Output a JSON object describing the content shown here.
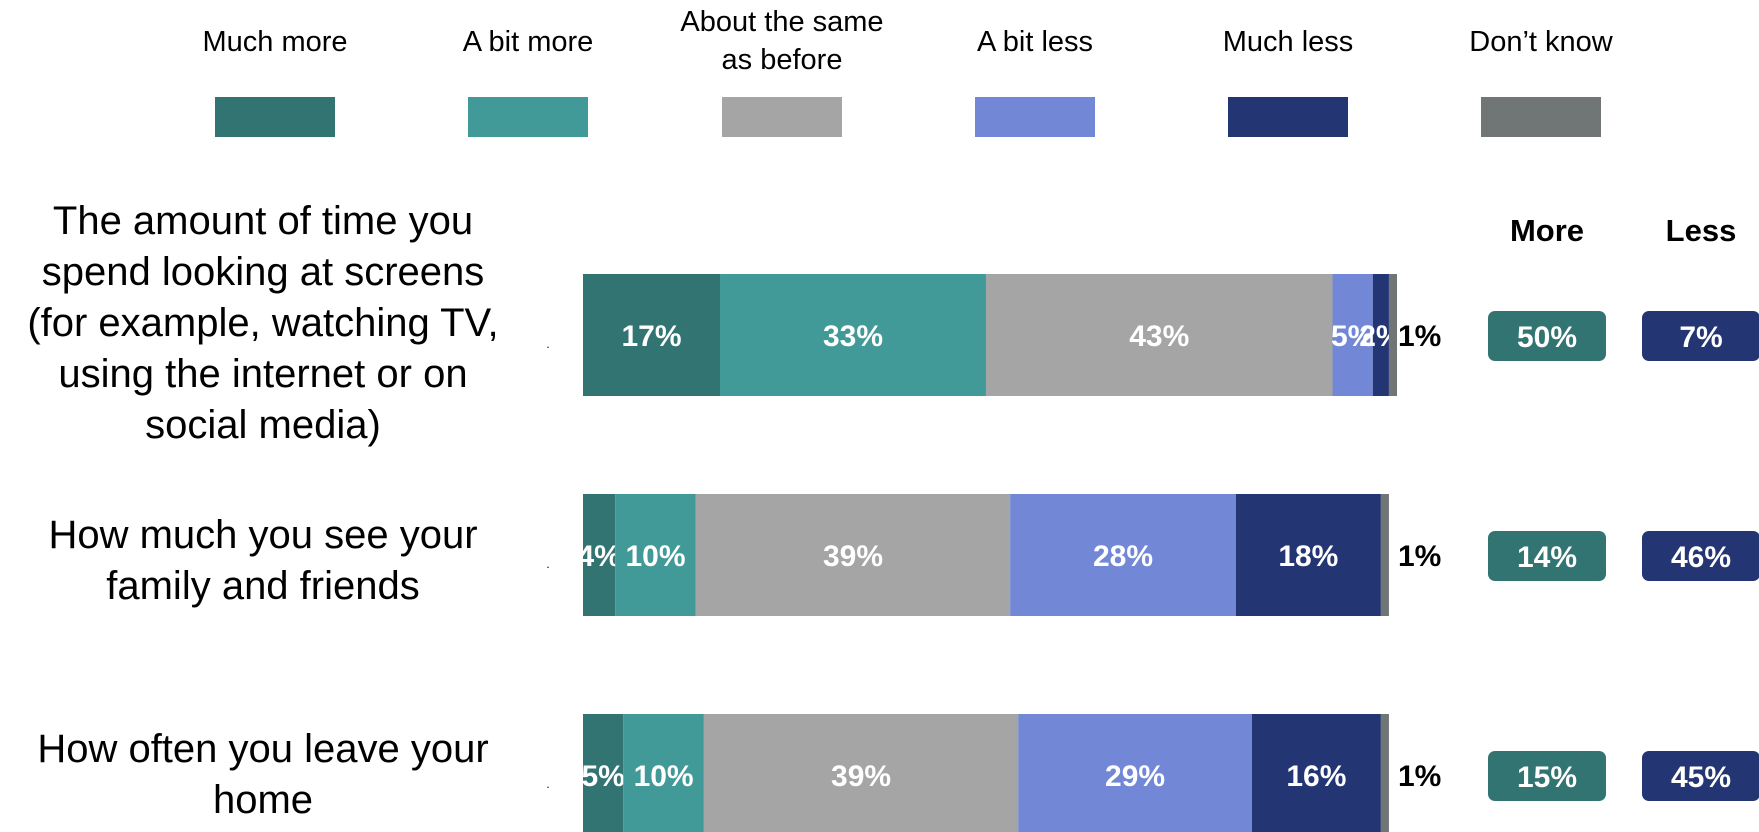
{
  "chart_data": {
    "type": "bar",
    "orientation": "horizontal",
    "stacked": true,
    "title": "",
    "xlabel": "",
    "ylabel": "",
    "xlim": [
      0,
      100
    ],
    "grid": false,
    "legend_position": "top",
    "categories": [
      "The amount of time you spend looking at screens (for example, watching TV, using the internet or on social media)",
      "How much you see your family and friends",
      "How often you leave your home"
    ],
    "category_label_lines": [
      [
        "The amount of time you",
        "spend looking at screens",
        "(for example, watching TV,",
        "using the internet or on",
        "social media)"
      ],
      [
        "How much you see your",
        "family and friends"
      ],
      [
        "How often you leave your",
        "home"
      ]
    ],
    "legend_label_lines": [
      [
        "Much more"
      ],
      [
        "A bit more"
      ],
      [
        "About the same",
        "as before"
      ],
      [
        "A bit less"
      ],
      [
        "Much less"
      ],
      [
        "Don’t know"
      ]
    ],
    "series": [
      {
        "name": "Much more",
        "color": "#327472",
        "values": [
          17,
          4,
          5
        ]
      },
      {
        "name": "A bit more",
        "color": "#429a98",
        "values": [
          33,
          10,
          10
        ]
      },
      {
        "name": "About the same as before",
        "color": "#a5a5a5",
        "values": [
          43,
          39,
          39
        ]
      },
      {
        "name": "A bit less",
        "color": "#7287d6",
        "values": [
          5,
          28,
          29
        ]
      },
      {
        "name": "Much less",
        "color": "#243573",
        "values": [
          2,
          18,
          16
        ]
      },
      {
        "name": "Don’t know",
        "color": "#707575",
        "values": [
          1,
          1,
          1
        ]
      }
    ],
    "summary": {
      "columns": [
        {
          "label": "More",
          "color": "#327472",
          "values": [
            50,
            14,
            15
          ]
        },
        {
          "label": "Less",
          "color": "#243573",
          "values": [
            7,
            46,
            45
          ]
        }
      ]
    }
  }
}
